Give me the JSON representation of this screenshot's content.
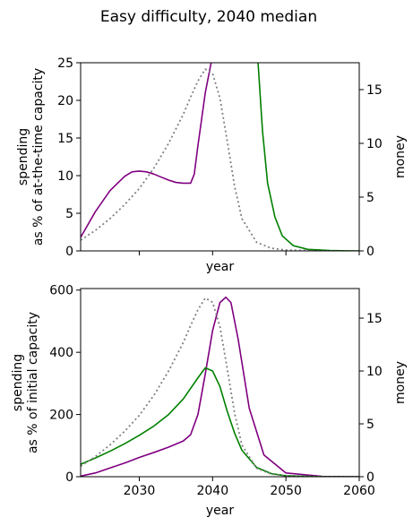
{
  "figure": {
    "title": "Easy difficulty, 2040 median"
  },
  "chart_data": [
    {
      "type": "line",
      "panel": "top",
      "xlabel": "year",
      "ylabel_left": [
        "spending",
        "as % of at-the-time capacity"
      ],
      "ylabel_right": "money",
      "xlim": [
        2022,
        2060
      ],
      "ylim_left": [
        0,
        25
      ],
      "ylim_right": [
        0,
        17.5
      ],
      "x_ticks": [
        2030,
        2040,
        2050,
        2060
      ],
      "y_ticks_left": [
        0,
        5,
        10,
        15,
        20,
        25
      ],
      "y_ticks_right": [
        0,
        5,
        10,
        15
      ],
      "show_x_tick_labels": false,
      "series": [
        {
          "color": "#800080",
          "axis": "left",
          "style": "solid",
          "x": [
            2022,
            2024,
            2026,
            2028,
            2029,
            2030,
            2031,
            2032,
            2033,
            2034,
            2035,
            2036,
            2037,
            2037.5,
            2038,
            2039,
            2039.8
          ],
          "y": [
            1.8,
            5.2,
            8.0,
            9.9,
            10.5,
            10.6,
            10.5,
            10.2,
            9.8,
            9.4,
            9.1,
            9.0,
            9.0,
            10.2,
            14.0,
            21.0,
            25.0
          ]
        },
        {
          "color": "#008000",
          "axis": "left",
          "style": "solid",
          "x": [
            2046.2,
            2046.8,
            2047.5,
            2048.5,
            2049.5,
            2051,
            2053,
            2056,
            2060
          ],
          "y": [
            25,
            16,
            9,
            4.5,
            2.0,
            0.7,
            0.2,
            0.05,
            0.0
          ]
        },
        {
          "color": "#808080",
          "axis": "right",
          "style": "dotted",
          "x": [
            2022,
            2024,
            2026,
            2028,
            2030,
            2032,
            2034,
            2036,
            2037,
            2038,
            2039,
            2040,
            2041,
            2042,
            2043,
            2044,
            2046,
            2048,
            2050,
            2055,
            2060
          ],
          "y": [
            1.0,
            1.9,
            3.0,
            4.3,
            5.8,
            7.7,
            10.0,
            12.7,
            14.3,
            15.8,
            16.9,
            16.5,
            14.2,
            10.2,
            6.0,
            3.0,
            0.8,
            0.25,
            0.08,
            0.0,
            0.0
          ]
        }
      ]
    },
    {
      "type": "line",
      "panel": "bottom",
      "xlabel": "year",
      "ylabel_left": [
        "spending",
        "as % of initial capacity"
      ],
      "ylabel_right": "money",
      "xlim": [
        2022,
        2060
      ],
      "ylim_left": [
        0,
        605
      ],
      "ylim_right": [
        0,
        17.8
      ],
      "x_ticks": [
        2030,
        2040,
        2050,
        2060
      ],
      "y_ticks_left": [
        0,
        200,
        400,
        600
      ],
      "y_ticks_right": [
        0,
        5,
        10,
        15
      ],
      "show_x_tick_labels": true,
      "series": [
        {
          "color": "#800080",
          "axis": "left",
          "style": "solid",
          "x": [
            2022,
            2024,
            2026,
            2028,
            2030,
            2032,
            2034,
            2036,
            2037,
            2038,
            2039,
            2040,
            2041,
            2041.8,
            2042.5,
            2043.5,
            2045,
            2047,
            2050,
            2055,
            2060
          ],
          "y": [
            2,
            12,
            28,
            44,
            62,
            78,
            95,
            115,
            135,
            200,
            330,
            470,
            560,
            577,
            560,
            440,
            220,
            70,
            12,
            1,
            0
          ]
        },
        {
          "color": "#008000",
          "axis": "left",
          "style": "solid",
          "x": [
            2022,
            2024,
            2026,
            2028,
            2030,
            2032,
            2034,
            2036,
            2038,
            2039,
            2040,
            2041,
            2042,
            2043,
            2044,
            2046,
            2048,
            2050,
            2055,
            2060
          ],
          "y": [
            40,
            60,
            82,
            106,
            133,
            163,
            200,
            250,
            318,
            350,
            340,
            290,
            210,
            140,
            85,
            30,
            10,
            3,
            0,
            0
          ]
        },
        {
          "color": "#808080",
          "axis": "right",
          "style": "dotted",
          "x": [
            2022,
            2024,
            2026,
            2028,
            2030,
            2032,
            2034,
            2036,
            2037,
            2038,
            2039,
            2040,
            2041,
            2042,
            2043,
            2044,
            2046,
            2048,
            2050,
            2055,
            2060
          ],
          "y": [
            1.0,
            1.9,
            3.0,
            4.3,
            5.8,
            7.7,
            10.0,
            12.7,
            14.3,
            15.8,
            16.9,
            16.5,
            14.2,
            10.2,
            6.0,
            3.0,
            0.8,
            0.25,
            0.08,
            0.0,
            0.0
          ]
        }
      ]
    }
  ]
}
